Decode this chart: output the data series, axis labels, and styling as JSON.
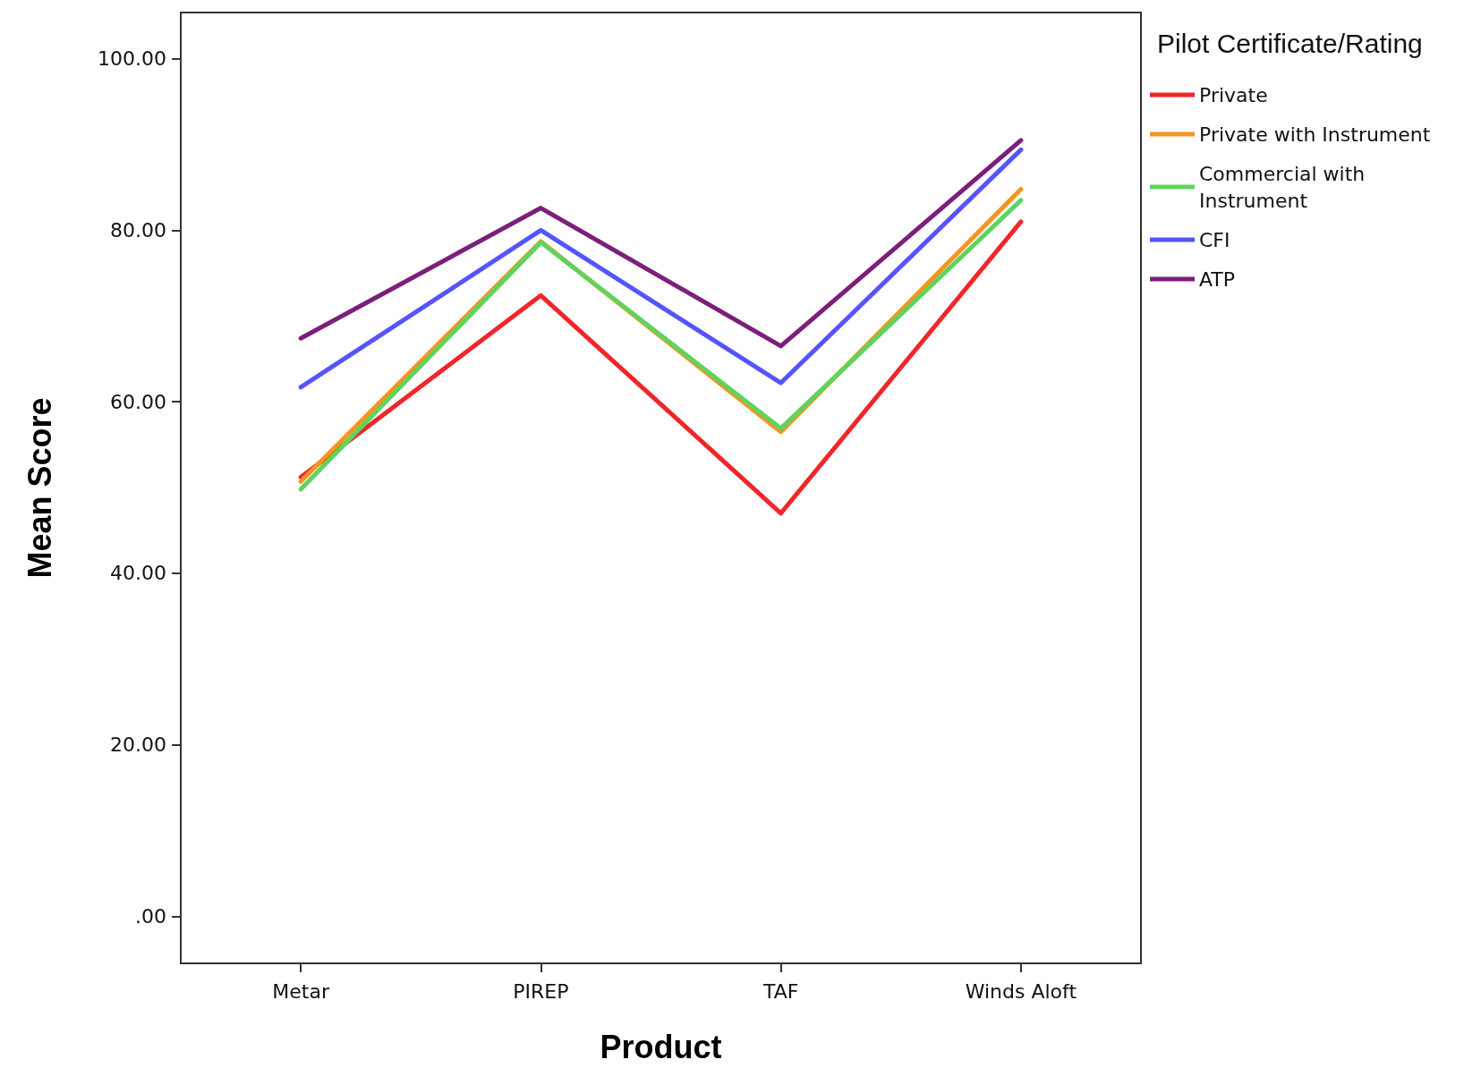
{
  "chart_data": {
    "type": "line",
    "xlabel": "Product",
    "ylabel": "Mean Score",
    "legend_title": "Pilot Certificate/Rating",
    "categories": [
      "Metar",
      "PIREP",
      "TAF",
      "Winds Aloft"
    ],
    "series": [
      {
        "name": "Private",
        "color": "#f0262a",
        "values": [
          51.2,
          72.4,
          47.0,
          81.0
        ]
      },
      {
        "name": "Private with Instrument",
        "color": "#f7941d",
        "values": [
          50.7,
          78.7,
          56.5,
          84.8
        ]
      },
      {
        "name": "Commercial with Instrument",
        "color": "#5fd35f",
        "values": [
          49.8,
          78.6,
          56.9,
          83.5
        ]
      },
      {
        "name": "CFI",
        "color": "#5555ff",
        "values": [
          61.7,
          80.0,
          62.2,
          89.4
        ]
      },
      {
        "name": "ATP",
        "color": "#7b1f7b",
        "values": [
          67.4,
          82.6,
          66.5,
          90.5
        ]
      }
    ],
    "ylim": [
      -5.5,
      105.4
    ],
    "yticks": [
      {
        "value": 0,
        "label": ".00"
      },
      {
        "value": 20,
        "label": "20.00"
      },
      {
        "value": 40,
        "label": "40.00"
      },
      {
        "value": 60,
        "label": "60.00"
      },
      {
        "value": 80,
        "label": "80.00"
      },
      {
        "value": 100,
        "label": "100.00"
      }
    ],
    "grid": false,
    "legend": "top right",
    "marker": "none",
    "line_style": "solid"
  }
}
